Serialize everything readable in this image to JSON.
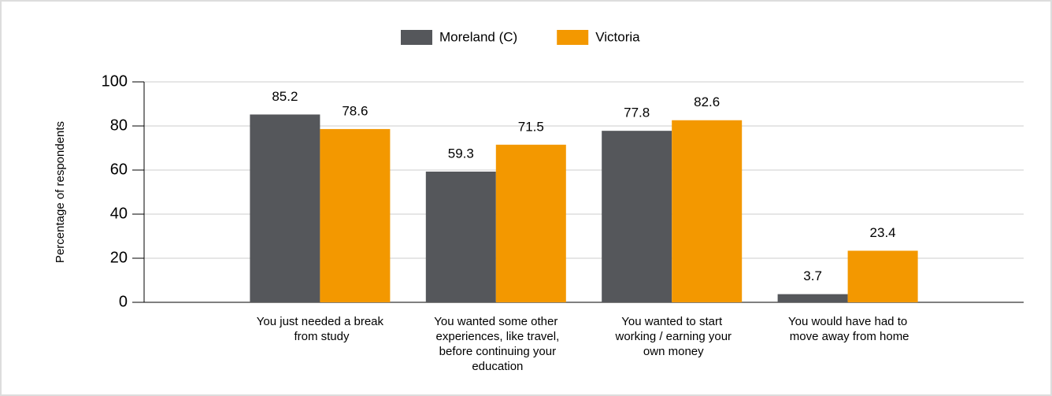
{
  "chart_data": {
    "type": "bar",
    "y_label": "Percentage of respondents",
    "categories": [
      "You just needed a break from study",
      "You wanted some other experiences, like travel, before continuing your education",
      "You wanted to start working / earning your own money",
      "You would have had to move away from home"
    ],
    "series": [
      {
        "name": "Moreland (C)",
        "color": "#55575b",
        "values": [
          85.2,
          59.3,
          77.8,
          3.7
        ]
      },
      {
        "name": "Victoria",
        "color": "#f39800",
        "values": [
          78.6,
          71.5,
          82.6,
          23.4
        ]
      }
    ],
    "ylim": [
      0,
      100
    ],
    "yticks": [
      0,
      20,
      40,
      60,
      80,
      100
    ],
    "grid": true,
    "legend": "top"
  }
}
